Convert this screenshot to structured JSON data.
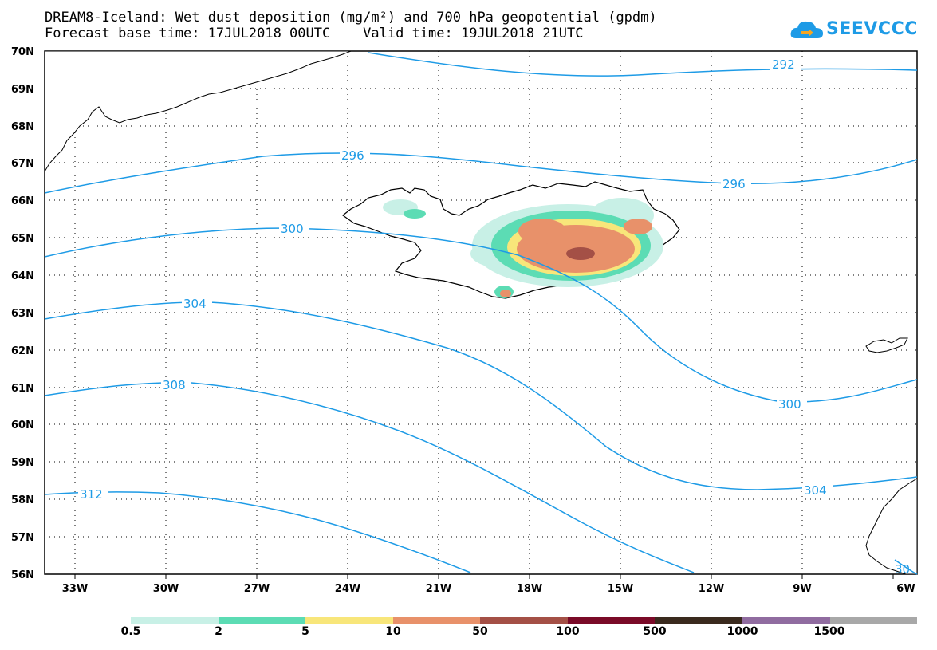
{
  "title_line1": "DREAM8-Iceland: Wet dust deposition (mg/m²) and 700 hPa geopotential (gpdm)",
  "title_line2": "Forecast base time: 17JUL2018 00UTC    Valid time: 19JUL2018 21UTC",
  "logo_text": "SEEVCCC",
  "map": {
    "lat_labels": [
      "70N",
      "69N",
      "68N",
      "67N",
      "66N",
      "65N",
      "64N",
      "63N",
      "62N",
      "61N",
      "60N",
      "59N",
      "58N",
      "57N",
      "56N"
    ],
    "lon_labels": [
      "33W",
      "30W",
      "27W",
      "24W",
      "21W",
      "18W",
      "15W",
      "12W",
      "9W",
      "6W"
    ],
    "contour_color": "#1e9be6",
    "contour_labels": [
      {
        "text": "292",
        "id": "c292"
      },
      {
        "text": "296",
        "id": "c296a"
      },
      {
        "text": "296",
        "id": "c296b"
      },
      {
        "text": "300",
        "id": "c300a"
      },
      {
        "text": "300",
        "id": "c300b"
      },
      {
        "text": "304",
        "id": "c304a"
      },
      {
        "text": "304",
        "id": "c304b"
      },
      {
        "text": "308",
        "id": "c308"
      },
      {
        "text": "312",
        "id": "c312"
      },
      {
        "text": "30",
        "id": "c30"
      }
    ]
  },
  "legend": {
    "colors": [
      "#c8f0e6",
      "#5cdcb4",
      "#f8e67a",
      "#e8916a",
      "#a45046",
      "#7a0a28",
      "#3a2a1e",
      "#906ca0",
      "#a8a8a8"
    ],
    "labels": [
      "0.5",
      "2",
      "5",
      "10",
      "50",
      "100",
      "500",
      "1000",
      "1500"
    ]
  }
}
